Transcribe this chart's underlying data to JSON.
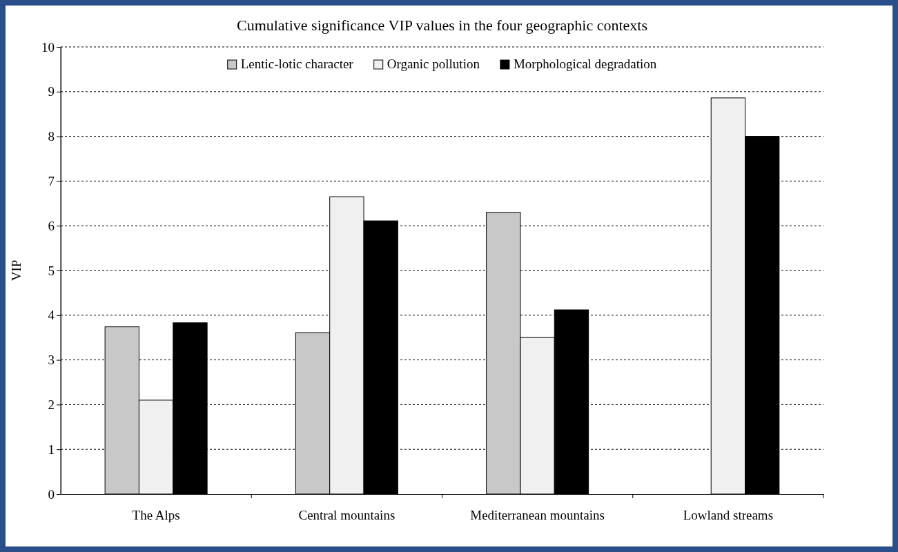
{
  "chart_data": {
    "type": "bar",
    "title": "Cumulative significance VIP values in the four geographic contexts",
    "ylabel": "VIP",
    "categories": [
      "The Alps",
      "Central mountains",
      "Mediterranean mountains",
      "Lowland streams"
    ],
    "series": [
      {
        "name": "Lentic-lotic character",
        "color": "#c8c8c8",
        "values": [
          3.74,
          3.61,
          6.3,
          null
        ]
      },
      {
        "name": "Organic pollution",
        "color": "#f0f0f0",
        "values": [
          2.1,
          6.65,
          3.5,
          8.86
        ]
      },
      {
        "name": "Morphological degradation",
        "color": "#000000",
        "values": [
          3.83,
          6.11,
          4.12,
          8.0
        ]
      }
    ],
    "ylim": [
      0,
      10
    ],
    "yticks": [
      0,
      1,
      2,
      3,
      4,
      5,
      6,
      7,
      8,
      9,
      10
    ],
    "grid": "y",
    "legend": "top"
  }
}
